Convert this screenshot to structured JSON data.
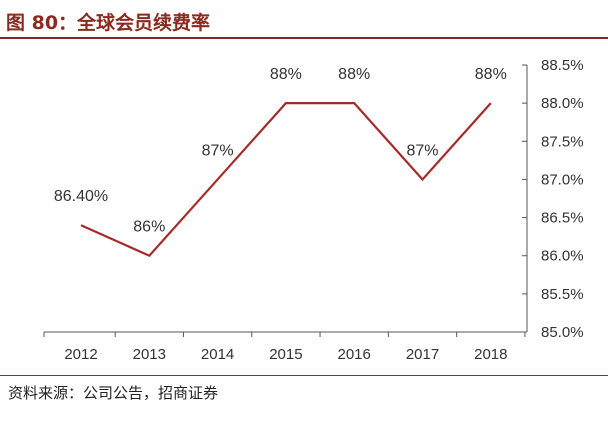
{
  "figure": {
    "title": "图 80：全球会员续费率",
    "source": "资料来源：公司公告，招商证券"
  },
  "colors": {
    "accent": "#8B2A1E",
    "line": "#A52A2A",
    "axis": "#555555",
    "text": "#333333"
  },
  "chart_data": {
    "type": "line",
    "title": "",
    "xlabel": "",
    "ylabel": "",
    "categories": [
      "2012",
      "2013",
      "2014",
      "2015",
      "2016",
      "2017",
      "2018"
    ],
    "series": [
      {
        "values": [
          86.4,
          86.0,
          87.0,
          88.0,
          88.0,
          87.0,
          88.0
        ],
        "data_labels": [
          "86.40%",
          "86%",
          "87%",
          "88%",
          "88%",
          "87%",
          "88%"
        ]
      }
    ],
    "ylim": [
      85.0,
      88.5
    ],
    "y_ticks": [
      "85.0%",
      "85.5%",
      "86.0%",
      "86.5%",
      "87.0%",
      "87.5%",
      "88.0%",
      "88.5%"
    ],
    "y_axis_position": "right",
    "grid": false,
    "legend": "none"
  }
}
